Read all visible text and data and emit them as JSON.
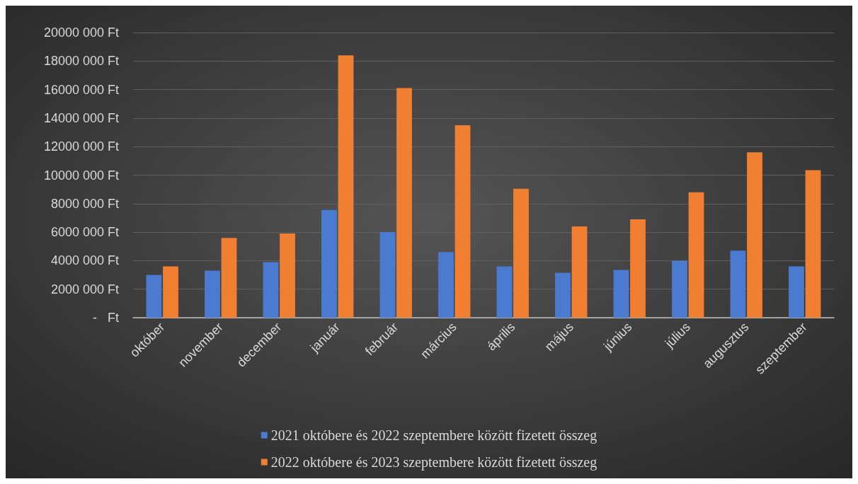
{
  "chart_data": {
    "type": "bar",
    "categories": [
      "október",
      "november",
      "december",
      "január",
      "február",
      "március",
      "április",
      "május",
      "június",
      "július",
      "augusztus",
      "szeptember"
    ],
    "series": [
      {
        "name": "2021 októbere és 2022 szeptembere között fizetett összeg",
        "color": "#4a7bd0",
        "values": [
          3000000,
          3300000,
          3900000,
          7550000,
          6000000,
          4600000,
          3600000,
          3150000,
          3350000,
          4000000,
          4700000,
          3600000
        ]
      },
      {
        "name": "2022 októbere és 2023 szeptembere között fizetett összeg",
        "color": "#f07f32",
        "values": [
          3600000,
          5600000,
          5900000,
          18400000,
          16100000,
          13500000,
          9050000,
          6400000,
          6900000,
          8800000,
          11600000,
          10350000
        ]
      }
    ],
    "ylim": [
      0,
      20000000
    ],
    "yticks": [
      {
        "value": 0,
        "label": "-   Ft"
      },
      {
        "value": 2000000,
        "label": "2000 000 Ft"
      },
      {
        "value": 4000000,
        "label": "4000 000 Ft"
      },
      {
        "value": 6000000,
        "label": "6000 000 Ft"
      },
      {
        "value": 8000000,
        "label": "8000 000 Ft"
      },
      {
        "value": 10000000,
        "label": "10000 000 Ft"
      },
      {
        "value": 12000000,
        "label": "12000 000 Ft"
      },
      {
        "value": 14000000,
        "label": "14000 000 Ft"
      },
      {
        "value": 16000000,
        "label": "16000 000 Ft"
      },
      {
        "value": 18000000,
        "label": "18000 000 Ft"
      },
      {
        "value": 20000000,
        "label": "20000 000 Ft"
      }
    ],
    "grid": "y",
    "legend": "bottom"
  }
}
